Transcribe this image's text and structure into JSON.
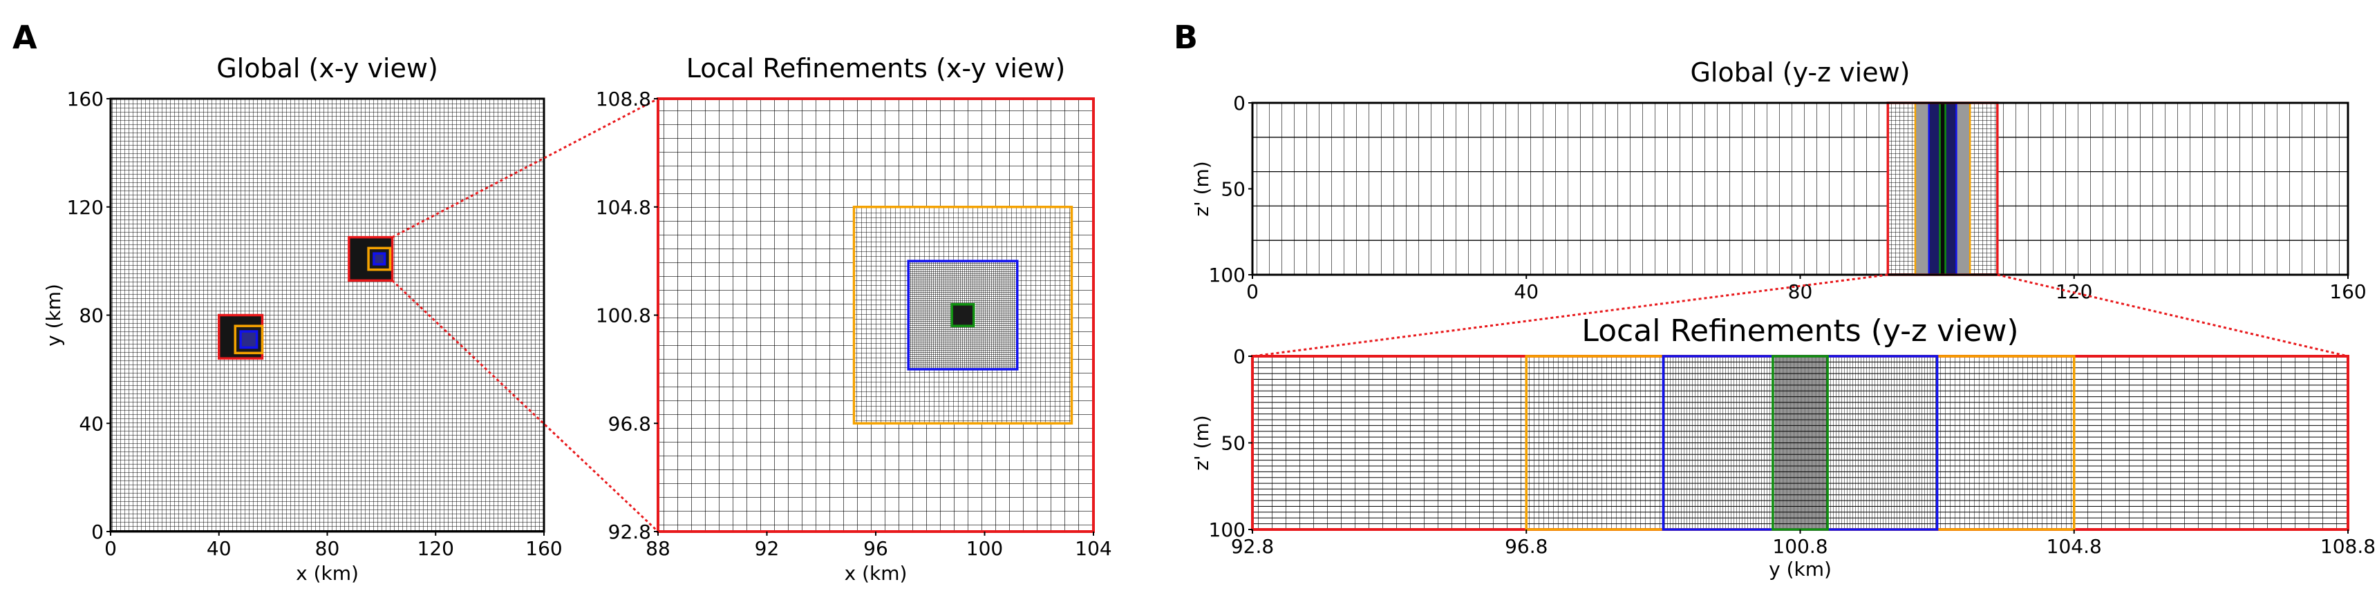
{
  "panels": {
    "a": {
      "letter": "A"
    },
    "b": {
      "letter": "B"
    }
  },
  "plots": {
    "global_xy": {
      "title": "Global (x-y view)",
      "xlabel": "x (km)",
      "ylabel": "y (km)",
      "xlim": [
        0,
        160
      ],
      "ylim": [
        0,
        160
      ],
      "xticks": [
        "0",
        "40",
        "80",
        "120",
        "160"
      ],
      "yticks": [
        "0",
        "40",
        "80",
        "120",
        "160"
      ],
      "grid_spacing_km": 1,
      "boxes": [
        {
          "name": "refinement-a-red",
          "x": [
            40,
            56
          ],
          "y": [
            64,
            80
          ],
          "color": "#e8191c"
        },
        {
          "name": "refinement-a-orange",
          "x": [
            46,
            56
          ],
          "y": [
            66,
            76
          ],
          "color": "#f5a200"
        },
        {
          "name": "refinement-a-blue",
          "x": [
            48,
            54
          ],
          "y": [
            68,
            74
          ],
          "color": "#1111ee"
        },
        {
          "name": "refinement-b-red",
          "x": [
            88,
            104
          ],
          "y": [
            92.8,
            108.8
          ],
          "color": "#e8191c"
        },
        {
          "name": "refinement-b-orange",
          "x": [
            95.2,
            103.2
          ],
          "y": [
            96.8,
            104.8
          ],
          "color": "#f5a200"
        },
        {
          "name": "refinement-b-blue",
          "x": [
            97.2,
            101.2
          ],
          "y": [
            98.8,
            102.8
          ],
          "color": "#1111ee"
        }
      ]
    },
    "local_xy": {
      "title": "Local Refinements (x-y view)",
      "xlabel": "x (km)",
      "xlim": [
        88,
        104
      ],
      "ylim": [
        92.8,
        108.8
      ],
      "xticks": [
        "88",
        "92",
        "96",
        "100",
        "104"
      ],
      "yticks": [
        "92.8",
        "96.8",
        "100.8",
        "104.8",
        "108.8"
      ],
      "levels": [
        {
          "name": "red-level",
          "x": [
            88,
            104
          ],
          "y": [
            92.8,
            108.8
          ],
          "spacing": 0.333,
          "color": "#e8191c"
        },
        {
          "name": "orange-level",
          "x": [
            95.2,
            103.2
          ],
          "y": [
            96.8,
            104.8
          ],
          "spacing": 0.111,
          "color": "#f5a200"
        },
        {
          "name": "blue-level",
          "x": [
            97.2,
            101.2
          ],
          "y": [
            98.8,
            102.8
          ],
          "spacing": 0.037,
          "color": "#1111ee"
        },
        {
          "name": "green-level",
          "x": [
            98.8,
            99.6
          ],
          "y": [
            100.4,
            101.2
          ],
          "spacing": 0.012,
          "color": "#109010"
        }
      ]
    },
    "global_yz": {
      "title": "Global (y-z view)",
      "xlabel": "",
      "ylabel": "z' (m)",
      "xlim": [
        0,
        160
      ],
      "zlim": [
        100,
        0
      ],
      "xticks": [
        "0",
        "40",
        "80",
        "120",
        "160"
      ],
      "zticks": [
        "0",
        "50",
        "100"
      ],
      "refinement": {
        "x": [
          92.8,
          108.8
        ],
        "color": "#e8191c"
      }
    },
    "local_yz": {
      "title": "Local Refinements (y-z view)",
      "xlabel": "y (km)",
      "ylabel": "z' (m)",
      "xlim": [
        92.8,
        108.8
      ],
      "zlim": [
        100,
        0
      ],
      "xticks": [
        "92.8",
        "96.8",
        "100.8",
        "104.8",
        "108.8"
      ],
      "zticks": [
        "0",
        "50",
        "100"
      ],
      "levels": [
        {
          "name": "red-level",
          "x": [
            92.8,
            108.8
          ],
          "spacing": 0.333,
          "color": "#e8191c"
        },
        {
          "name": "orange-level",
          "x": [
            96.8,
            104.8
          ],
          "spacing": 0.111,
          "color": "#f5a200"
        },
        {
          "name": "blue-level",
          "x": [
            98.8,
            102.8
          ],
          "spacing": 0.037,
          "color": "#1111ee"
        },
        {
          "name": "green-level",
          "x": [
            100.4,
            101.2
          ],
          "spacing": 0.012,
          "color": "#109010"
        }
      ]
    }
  }
}
